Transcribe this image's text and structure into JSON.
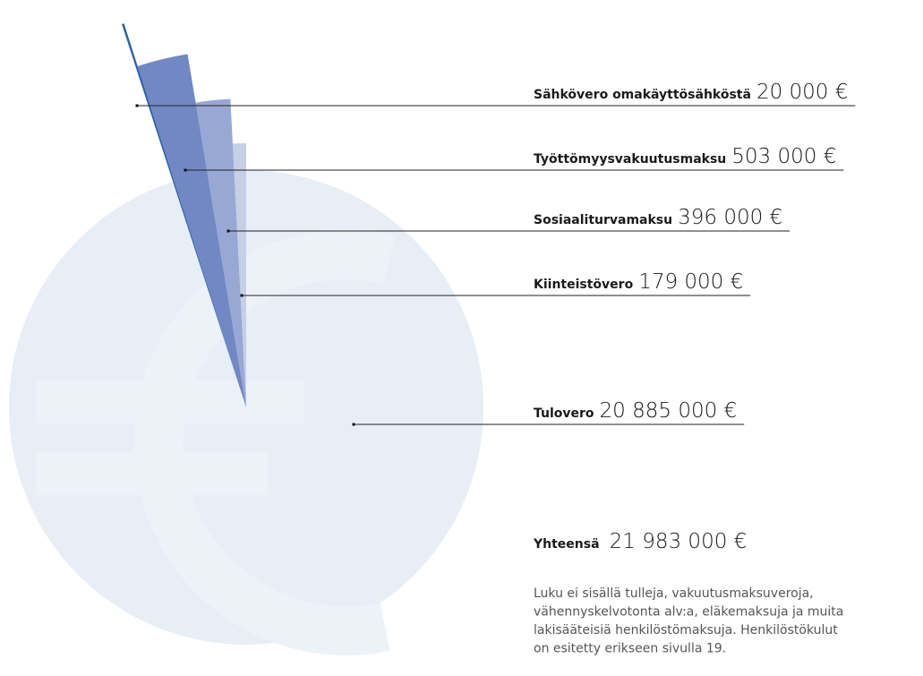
{
  "chart_data": {
    "type": "pie",
    "categories": [
      "Sähkövero omakäyttösähköstä",
      "Työttömyysvakuutusmaksu",
      "Sosiaaliturvamaksu",
      "Kiinteistövero",
      "Tulovero"
    ],
    "values": [
      20000,
      503000,
      396000,
      179000,
      20885000
    ],
    "value_labels": [
      "20 000 €",
      "503 000 €",
      "396 000 €",
      "179 000 €",
      "20 885 000 €"
    ],
    "colors": [
      "#2f5fa8",
      "#7188c5",
      "#98a8d5",
      "#c5cfe6",
      "#e7eef6"
    ],
    "total": {
      "name": "Yhteensä",
      "value": 21983000,
      "value_label": "21 983 000 €"
    },
    "note": [
      "Luku ei sisällä tulleja, vakuutusmaksuveroja,",
      "vähennyskelvotonta alv:a, eläkemaksuja ja muita",
      "lakisääteisiä henkilöstömaksuja. Henkilöstökulut",
      "on esitetty erikseen sivulla 19."
    ]
  }
}
